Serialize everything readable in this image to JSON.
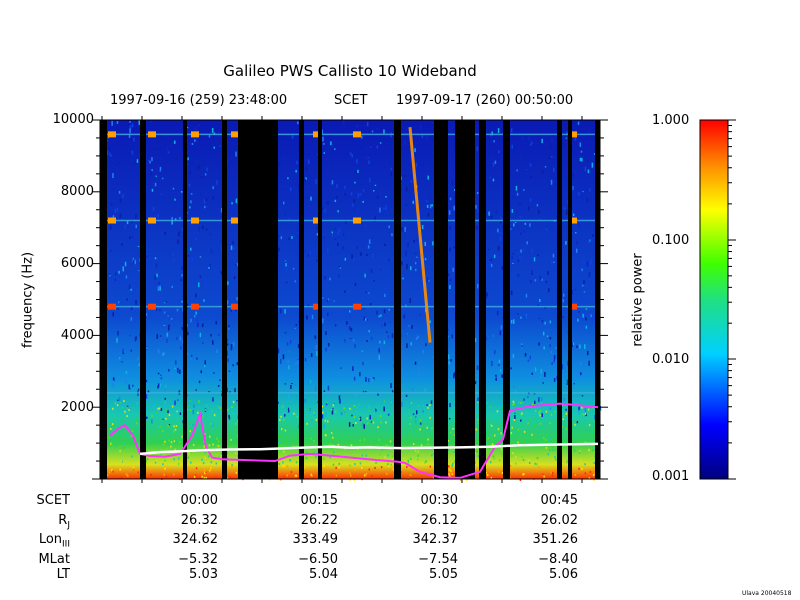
{
  "chart_data": {
    "type": "heatmap",
    "title": "Galileo PWS Callisto 10 Wideband",
    "time_start": "1997-09-16 (259) 23:48:00",
    "time_label": "SCET",
    "time_end": "1997-09-17 (260) 00:50:00",
    "ylabel": "frequency (Hz)",
    "ylim": [
      0,
      10000
    ],
    "yticks": [
      "2000",
      "4000",
      "6000",
      "8000",
      "10000"
    ],
    "colorbar": {
      "label": "relative power",
      "scale": "log",
      "range": [
        0.001,
        1.0
      ],
      "ticks": [
        "1.000",
        "0.100",
        "0.010",
        "0.001"
      ]
    },
    "colors": {
      "background_low": "#0a1ab4",
      "noise_band": "#1fc86a",
      "line_tone": "#ff7a00",
      "magenta_trace": "#ff33ff",
      "white_trace": "#ffffff"
    },
    "line_tones_hz": [
      4800,
      7200,
      9600,
      2400
    ],
    "ephemeris": {
      "rows": [
        {
          "label": "SCET",
          "values": [
            "00:00",
            "00:15",
            "00:30",
            "00:45"
          ]
        },
        {
          "label": "R_J",
          "values": [
            "26.32",
            "26.22",
            "26.12",
            "26.02"
          ]
        },
        {
          "label": "Lon_III",
          "values": [
            "324.62",
            "333.49",
            "342.37",
            "351.26"
          ]
        },
        {
          "label": "MLat",
          "values": [
            "−5.32",
            "−6.50",
            "−7.54",
            "−8.40"
          ]
        },
        {
          "label": "LT",
          "values": [
            "5.03",
            "5.04",
            "5.05",
            "5.06"
          ]
        }
      ]
    }
  },
  "credit": "Ulava 20040518"
}
